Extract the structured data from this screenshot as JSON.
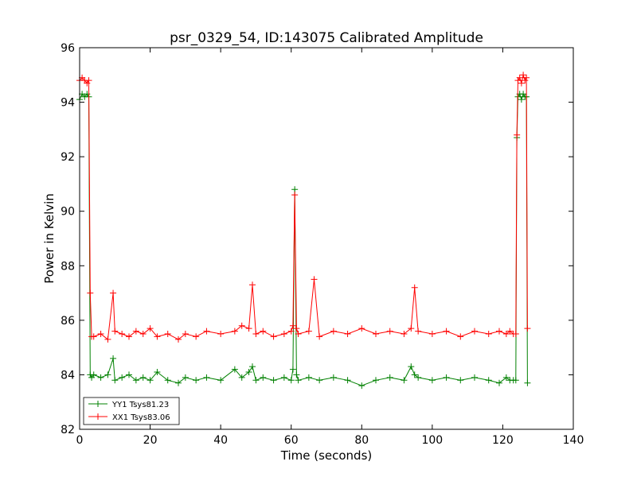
{
  "chart_data": {
    "type": "line",
    "title": "psr_0329_54, ID:143075 Calibrated Amplitude",
    "xlabel": "Time (seconds)",
    "ylabel": "Power in Kelvin",
    "xlim": [
      0,
      140
    ],
    "ylim": [
      82,
      96
    ],
    "xticks": [
      0,
      20,
      40,
      60,
      80,
      100,
      120,
      140
    ],
    "yticks": [
      82,
      84,
      86,
      88,
      90,
      92,
      94,
      96
    ],
    "xtick_labels": [
      "0",
      "20",
      "40",
      "60",
      "80",
      "100",
      "120",
      "140"
    ],
    "ytick_labels": [
      "82",
      "84",
      "86",
      "88",
      "90",
      "92",
      "94",
      "96"
    ],
    "legend_position": "lower-left",
    "series": [
      {
        "name": "YY1 Tsys81.23",
        "color": "#008000",
        "marker": "plus",
        "x": [
          0.0,
          0.7,
          1.4,
          2.1,
          2.6,
          3.0,
          3.4,
          4,
          6,
          8,
          9.5,
          10,
          12,
          14,
          16,
          18,
          20,
          22,
          25,
          28,
          30,
          33,
          36,
          40,
          44,
          46,
          48,
          49,
          50,
          52,
          55,
          58,
          60,
          60.5,
          61,
          61.5,
          62,
          65,
          68,
          72,
          76,
          80,
          84,
          88,
          92,
          94,
          95,
          96,
          100,
          104,
          108,
          112,
          116,
          119,
          121,
          122,
          123,
          123.7,
          124.0,
          124.3,
          124.8,
          125.3,
          125.8,
          126.3,
          126.7,
          127.0
        ],
        "y": [
          94.1,
          94.3,
          94.2,
          94.3,
          94.2,
          84.0,
          83.9,
          84.0,
          83.9,
          84.0,
          84.6,
          83.8,
          83.9,
          84.0,
          83.8,
          83.9,
          83.8,
          84.1,
          83.8,
          83.7,
          83.9,
          83.8,
          83.9,
          83.8,
          84.2,
          83.9,
          84.1,
          84.3,
          83.8,
          83.9,
          83.8,
          83.9,
          83.8,
          84.2,
          90.8,
          84.0,
          83.8,
          83.9,
          83.8,
          83.9,
          83.8,
          83.6,
          83.8,
          83.9,
          83.8,
          84.3,
          84.0,
          83.9,
          83.8,
          83.9,
          83.8,
          83.9,
          83.8,
          83.7,
          83.9,
          83.8,
          83.8,
          83.8,
          92.7,
          94.2,
          94.3,
          94.1,
          94.3,
          94.2,
          94.2,
          83.7
        ]
      },
      {
        "name": "XX1 Tsys83.06",
        "color": "#ff0000",
        "marker": "plus",
        "x": [
          0.0,
          0.7,
          1.4,
          2.1,
          2.6,
          3.0,
          3.4,
          4,
          6,
          8,
          9.5,
          10,
          12,
          14,
          16,
          18,
          20,
          22,
          25,
          28,
          30,
          33,
          36,
          40,
          44,
          46,
          48,
          49,
          50,
          52,
          55,
          58,
          60,
          60.5,
          61,
          61.5,
          62,
          65,
          66.5,
          68,
          72,
          76,
          80,
          84,
          88,
          92,
          94,
          95,
          96,
          100,
          104,
          108,
          112,
          116,
          119,
          121,
          122,
          123,
          123.7,
          124.0,
          124.3,
          124.8,
          125.3,
          125.8,
          126.3,
          126.7,
          127.0
        ],
        "y": [
          94.8,
          94.9,
          94.8,
          94.7,
          94.8,
          87.0,
          85.4,
          85.4,
          85.5,
          85.3,
          87.0,
          85.6,
          85.5,
          85.4,
          85.6,
          85.5,
          85.7,
          85.4,
          85.5,
          85.3,
          85.5,
          85.4,
          85.6,
          85.5,
          85.6,
          85.8,
          85.7,
          87.3,
          85.5,
          85.6,
          85.4,
          85.5,
          85.6,
          85.8,
          90.6,
          85.7,
          85.5,
          85.6,
          87.5,
          85.4,
          85.6,
          85.5,
          85.7,
          85.5,
          85.6,
          85.5,
          85.7,
          87.2,
          85.6,
          85.5,
          85.6,
          85.4,
          85.6,
          85.5,
          85.6,
          85.5,
          85.6,
          85.5,
          85.5,
          92.8,
          94.8,
          94.9,
          94.7,
          95.0,
          94.8,
          94.9,
          85.7
        ]
      }
    ]
  }
}
